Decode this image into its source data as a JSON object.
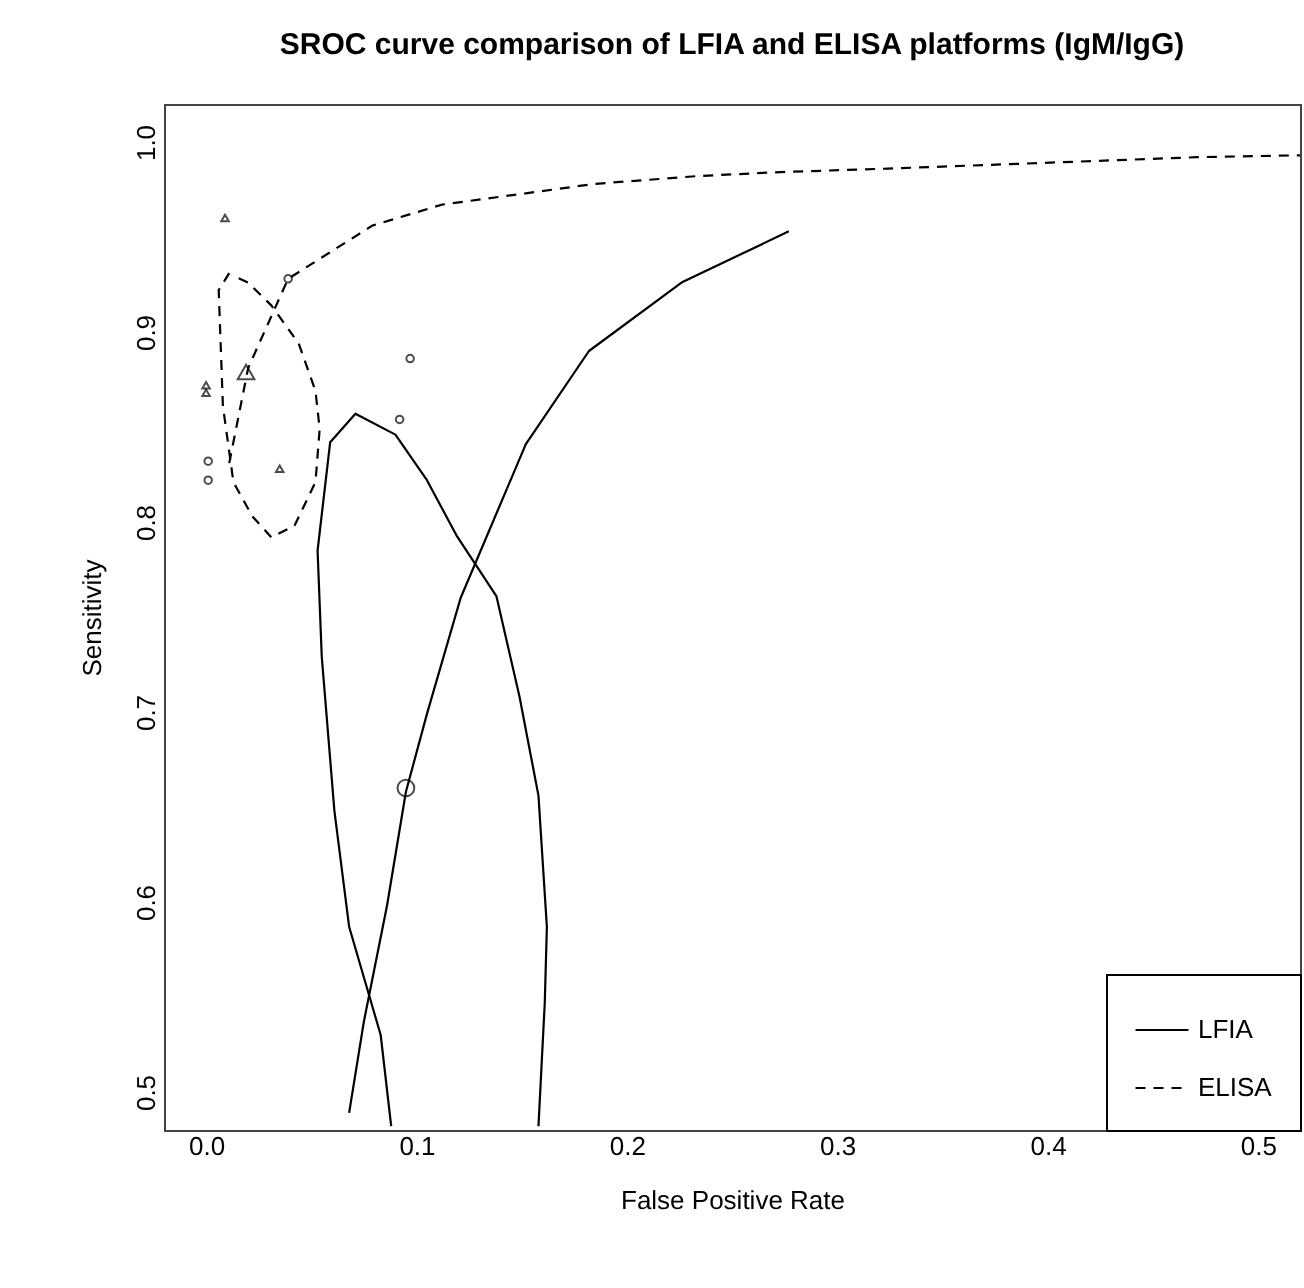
{
  "chart_data": {
    "type": "line",
    "title": "SROC curve comparison of LFIA and ELISA platforms (IgM/IgG)",
    "xlabel": "False Positive Rate",
    "ylabel": "Sensitivity",
    "xlim": [
      -0.02,
      0.52
    ],
    "ylim": [
      0.48,
      1.02
    ],
    "xticks": [
      {
        "value": 0,
        "label": "0.0"
      },
      0.1,
      0.2,
      0.3,
      0.4,
      0.5
    ],
    "yticks": [
      0.5,
      0.6,
      0.7,
      0.8,
      0.9,
      {
        "value": 1,
        "label": "1.0"
      }
    ],
    "grid": false,
    "legend": "bottom right",
    "series": [
      {
        "name": "LFIA",
        "type": "line",
        "color": "#000000",
        "line_style": "solid",
        "x": [
          0.068,
          0.075,
          0.086,
          0.095,
          0.105,
          0.121,
          0.152,
          0.182,
          0.226,
          0.277
        ],
        "values": [
          0.489,
          0.537,
          0.598,
          0.658,
          0.699,
          0.76,
          0.841,
          0.89,
          0.926,
          0.953
        ]
      },
      {
        "type": "scatter",
        "color": "#000000",
        "marker": "circle",
        "x": [
          0.095
        ],
        "values": [
          0.66
        ]
      },
      {
        "type": "scatter",
        "color": "#000000",
        "marker": "circle",
        "x": [
          0.001,
          0.001,
          0.097,
          0.092,
          0.039
        ],
        "values": [
          0.832,
          0.822,
          0.886,
          0.854,
          0.928
        ]
      },
      {
        "type": "line",
        "color": "#000000",
        "line_style": "solid",
        "x": [
          0.088,
          0.083,
          0.068,
          0.061,
          0.055,
          0.053,
          0.059,
          0.071,
          0.09,
          0.105,
          0.119,
          0.138,
          0.149,
          0.158,
          0.162,
          0.161,
          0.158
        ],
        "values": [
          0.482,
          0.53,
          0.587,
          0.648,
          0.729,
          0.785,
          0.842,
          0.857,
          0.846,
          0.822,
          0.793,
          0.761,
          0.708,
          0.656,
          0.587,
          0.547,
          0.482
        ]
      },
      {
        "name": "ELISA",
        "type": "line",
        "color": "#000000",
        "line_style": "dashed",
        "x": [
          0.011,
          0.02,
          0.039,
          0.079,
          0.112,
          0.152,
          0.185,
          0.233,
          0.269,
          0.324,
          0.398,
          0.471,
          0.52
        ],
        "values": [
          0.831,
          0.881,
          0.928,
          0.956,
          0.967,
          0.973,
          0.978,
          0.982,
          0.984,
          0.986,
          0.989,
          0.992,
          0.993
        ]
      },
      {
        "type": "scatter",
        "color": "#000000",
        "marker": "triangle",
        "x": [
          0.019
        ],
        "values": [
          0.879
        ]
      },
      {
        "type": "scatter",
        "color": "#000000",
        "marker": "triangle",
        "x": [
          0.009,
          0.0,
          0.0,
          0.035
        ],
        "values": [
          0.96,
          0.872,
          0.868,
          0.828
        ]
      },
      {
        "type": "line",
        "color": "#000000",
        "line_style": "dashed",
        "x": [
          0.011,
          0.006,
          0.008,
          0.013,
          0.022,
          0.031,
          0.042,
          0.052,
          0.054,
          0.052,
          0.044,
          0.031,
          0.02,
          0.012
        ],
        "values": [
          0.931,
          0.922,
          0.861,
          0.821,
          0.803,
          0.792,
          0.798,
          0.821,
          0.849,
          0.869,
          0.894,
          0.914,
          0.926,
          0.93
        ]
      }
    ]
  }
}
